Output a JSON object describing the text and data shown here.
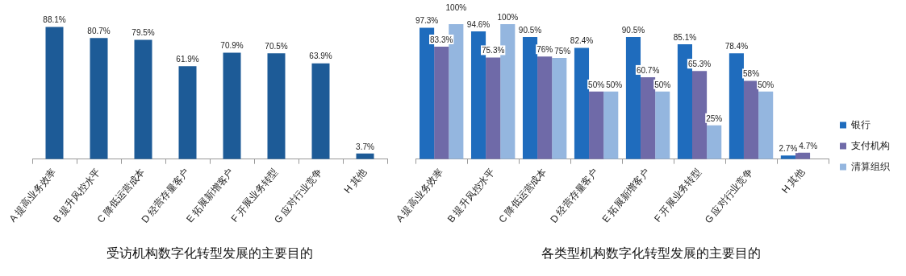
{
  "chart_data": [
    {
      "type": "bar",
      "title": "受访机构数字化转型发展的主要目的",
      "categories": [
        "A 提高业务效率",
        "B 提升风控水平",
        "C 降低运营成本",
        "D 经营存量客户",
        "E 拓展新增客户",
        "F 开展业务转型",
        "G 应对行业竞争",
        "H 其他"
      ],
      "values": [
        88.1,
        80.7,
        79.5,
        61.9,
        70.9,
        70.5,
        63.9,
        3.7
      ],
      "value_labels": [
        "88.1%",
        "80.7%",
        "79.5%",
        "61.9%",
        "70.9%",
        "70.5%",
        "63.9%",
        "3.7%"
      ],
      "color": "#1d5b97",
      "tick_labels": "x"
    },
    {
      "type": "bar",
      "title": "各类型机构数字化转型发展的主要目的",
      "categories": [
        "A 提高业务效率",
        "B 提升风控水平",
        "C 降低运营成本",
        "D 经营存量客户",
        "E 拓展新增客户",
        "F 开展业务转型",
        "G 应对行业竞争",
        "H 其他"
      ],
      "series": [
        {
          "name": "银行",
          "color": "#1f6cbd",
          "values": [
            97.3,
            94.6,
            90.5,
            82.4,
            90.5,
            85.1,
            78.4,
            2.7
          ],
          "value_labels": [
            "97.3%",
            "94.6%",
            "90.5%",
            "82.4%",
            "90.5%",
            "85.1%",
            "78.4%",
            "2.7%"
          ]
        },
        {
          "name": "支付机构",
          "color": "#6f6aa8",
          "values": [
            83.3,
            75.3,
            76,
            50,
            60.7,
            65.3,
            58,
            4.7
          ],
          "value_labels": [
            "83.3%",
            "75.3%",
            "76%",
            "50%",
            "60.7%",
            "65.3%",
            "58%",
            "4.7%"
          ]
        },
        {
          "name": "清算组织",
          "color": "#94b6df",
          "values": [
            100,
            100,
            75,
            50,
            50,
            25,
            50,
            null
          ],
          "value_labels": [
            "100%",
            "100%",
            "75%",
            "50%",
            "50%",
            "25%",
            "50%",
            null
          ]
        }
      ],
      "legend": "right",
      "tick_labels": "x"
    }
  ]
}
